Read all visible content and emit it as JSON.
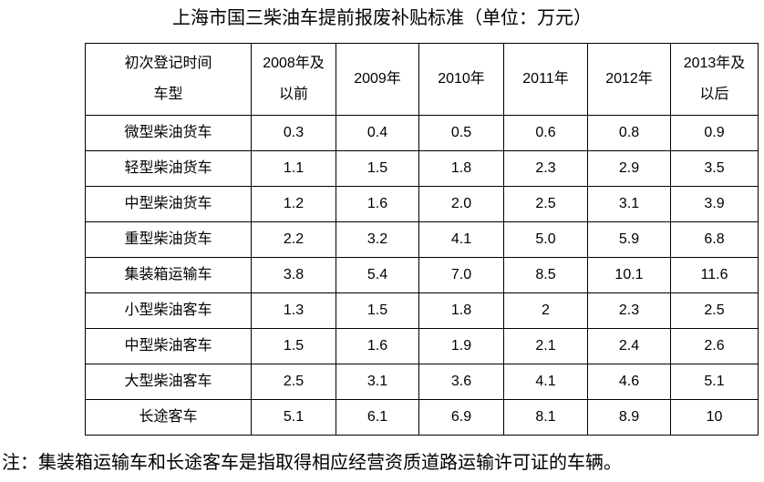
{
  "title": "上海市国三柴油车提前报废补贴标准（单位：万元）",
  "table": {
    "corner_header": "初次登记时间\n车型",
    "year_columns": [
      "2008年及\n以前",
      "2009年",
      "2010年",
      "2011年",
      "2012年",
      "2013年及\n以后"
    ],
    "rows": [
      {
        "label": "微型柴油货车",
        "values": [
          "0.3",
          "0.4",
          "0.5",
          "0.6",
          "0.8",
          "0.9"
        ]
      },
      {
        "label": "轻型柴油货车",
        "values": [
          "1.1",
          "1.5",
          "1.8",
          "2.3",
          "2.9",
          "3.5"
        ]
      },
      {
        "label": "中型柴油货车",
        "values": [
          "1.2",
          "1.6",
          "2.0",
          "2.5",
          "3.1",
          "3.9"
        ]
      },
      {
        "label": "重型柴油货车",
        "values": [
          "2.2",
          "3.2",
          "4.1",
          "5.0",
          "5.9",
          "6.8"
        ]
      },
      {
        "label": "集装箱运输车",
        "values": [
          "3.8",
          "5.4",
          "7.0",
          "8.5",
          "10.1",
          "11.6"
        ]
      },
      {
        "label": "小型柴油客车",
        "values": [
          "1.3",
          "1.5",
          "1.8",
          "2",
          "2.3",
          "2.5"
        ]
      },
      {
        "label": "中型柴油客车",
        "values": [
          "1.5",
          "1.6",
          "1.9",
          "2.1",
          "2.4",
          "2.6"
        ]
      },
      {
        "label": "大型柴油客车",
        "values": [
          "2.5",
          "3.1",
          "3.6",
          "4.1",
          "4.6",
          "5.1"
        ]
      },
      {
        "label": "长途客车",
        "values": [
          "5.1",
          "6.1",
          "6.9",
          "8.1",
          "8.9",
          "10"
        ]
      }
    ]
  },
  "note": "注：集装箱运输车和长途客车是指取得相应经营资质道路运输许可证的车辆。",
  "colors": {
    "text": "#000000",
    "border": "#000000",
    "background": "#ffffff"
  }
}
